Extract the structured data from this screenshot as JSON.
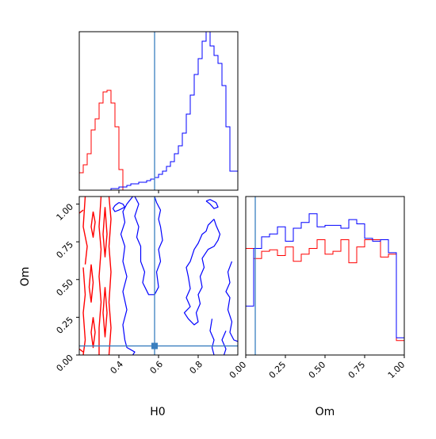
{
  "chart_data": [
    {
      "panel": "H0 marginal",
      "type": "histogram",
      "xlim": [
        0.2,
        1.0
      ],
      "truth": 0.58,
      "bin_edges": [
        0.2,
        0.22,
        0.24,
        0.26,
        0.28,
        0.3,
        0.32,
        0.34,
        0.36,
        0.38,
        0.4,
        0.42,
        0.44,
        0.46,
        0.48,
        0.5,
        0.52,
        0.54,
        0.56,
        0.58,
        0.6,
        0.62,
        0.64,
        0.66,
        0.68,
        0.7,
        0.72,
        0.74,
        0.76,
        0.78,
        0.8,
        0.82,
        0.84,
        0.86,
        0.88,
        0.9,
        0.92,
        0.94,
        0.96,
        0.98,
        1.0
      ],
      "series": [
        {
          "color": "#ff0000",
          "counts": [
            0.11,
            0.16,
            0.23,
            0.38,
            0.45,
            0.55,
            0.62,
            0.63,
            0.55,
            0.4,
            0.13,
            0,
            0,
            0,
            0,
            0,
            0,
            0,
            0,
            0,
            0,
            0,
            0,
            0,
            0,
            0,
            0,
            0,
            0,
            0,
            0,
            0,
            0,
            0,
            0,
            0,
            0,
            0,
            0,
            0
          ]
        },
        {
          "color": "#0000ff",
          "counts": [
            0,
            0,
            0,
            0,
            0,
            0,
            0,
            0,
            0.01,
            0.01,
            0.02,
            0.02,
            0.03,
            0.04,
            0.04,
            0.05,
            0.05,
            0.06,
            0.07,
            0.08,
            0.1,
            0.12,
            0.15,
            0.18,
            0.23,
            0.28,
            0.36,
            0.48,
            0.6,
            0.73,
            0.83,
            0.94,
            1.0,
            0.91,
            0.85,
            0.8,
            0.66,
            0.4,
            0.12,
            0.12
          ]
        }
      ]
    },
    {
      "panel": "Om marginal",
      "type": "histogram",
      "xlabel": "Om",
      "xlim": [
        0.0,
        1.0
      ],
      "xticks": [
        "0.00",
        "0.25",
        "0.50",
        "0.75",
        "1.00"
      ],
      "truth": 0.06,
      "bin_edges": [
        0.0,
        0.05,
        0.1,
        0.15,
        0.2,
        0.25,
        0.3,
        0.35,
        0.4,
        0.45,
        0.5,
        0.55,
        0.6,
        0.65,
        0.7,
        0.75,
        0.8,
        0.85,
        0.9,
        0.95,
        1.0
      ],
      "series": [
        {
          "color": "#ff0000",
          "counts": [
            0.74,
            0.67,
            0.72,
            0.73,
            0.69,
            0.75,
            0.65,
            0.7,
            0.74,
            0.8,
            0.7,
            0.72,
            0.8,
            0.64,
            0.75,
            0.8,
            0.8,
            0.68,
            0.7,
            0.1
          ]
        },
        {
          "color": "#0000ff",
          "counts": [
            0.34,
            0.74,
            0.82,
            0.84,
            0.89,
            0.79,
            0.88,
            0.92,
            0.98,
            0.89,
            0.9,
            0.9,
            0.88,
            0.94,
            0.91,
            0.81,
            0.79,
            0.8,
            0.71,
            0.12
          ]
        }
      ]
    },
    {
      "panel": "H0 vs Om contours",
      "type": "contour",
      "xlabel": "H0",
      "ylabel": "Om",
      "xlim": [
        0.2,
        1.0
      ],
      "ylim": [
        0.0,
        1.05
      ],
      "xticks": [
        "0.4",
        "0.6",
        "0.8"
      ],
      "yticks": [
        "0.00",
        "0.25",
        "0.50",
        "0.75",
        "1.00"
      ],
      "truth": {
        "x": 0.58,
        "y": 0.06
      },
      "series": [
        {
          "color": "#ff0000",
          "contours": [
            [
              [
                0.31,
                1.05
              ],
              [
                0.3,
                0.85
              ],
              [
                0.31,
                0.7
              ],
              [
                0.3,
                0.52
              ],
              [
                0.31,
                0.35
              ],
              [
                0.3,
                0.18
              ],
              [
                0.3,
                0.0
              ]
            ],
            [
              [
                0.35,
                1.05
              ],
              [
                0.36,
                0.9
              ],
              [
                0.35,
                0.72
              ],
              [
                0.36,
                0.55
              ],
              [
                0.35,
                0.35
              ],
              [
                0.36,
                0.18
              ],
              [
                0.35,
                0.0
              ]
            ],
            [
              [
                0.23,
                1.05
              ],
              [
                0.22,
                0.85
              ],
              [
                0.24,
                0.72
              ],
              [
                0.23,
                0.6
              ]
            ],
            [
              [
                0.22,
                0.58
              ],
              [
                0.23,
                0.4
              ],
              [
                0.22,
                0.28
              ],
              [
                0.23,
                0.1
              ],
              [
                0.22,
                0.0
              ]
            ],
            [
              [
                0.27,
                0.95
              ],
              [
                0.26,
                0.85
              ],
              [
                0.27,
                0.78
              ],
              [
                0.28,
                0.88
              ],
              [
                0.27,
                0.95
              ]
            ],
            [
              [
                0.26,
                0.6
              ],
              [
                0.25,
                0.45
              ],
              [
                0.26,
                0.35
              ],
              [
                0.27,
                0.48
              ],
              [
                0.26,
                0.6
              ]
            ],
            [
              [
                0.27,
                0.25
              ],
              [
                0.26,
                0.15
              ],
              [
                0.27,
                0.05
              ],
              [
                0.28,
                0.15
              ],
              [
                0.27,
                0.25
              ]
            ],
            [
              [
                0.33,
                0.98
              ],
              [
                0.32,
                0.8
              ],
              [
                0.33,
                0.65
              ],
              [
                0.34,
                0.8
              ],
              [
                0.33,
                0.98
              ]
            ],
            [
              [
                0.33,
                0.45
              ],
              [
                0.32,
                0.28
              ],
              [
                0.33,
                0.12
              ],
              [
                0.34,
                0.28
              ],
              [
                0.33,
                0.45
              ]
            ],
            [
              [
                0.22,
                0.96
              ],
              [
                0.2,
                0.94
              ]
            ],
            [
              [
                0.22,
                0.02
              ],
              [
                0.2,
                0.04
              ]
            ]
          ]
        },
        {
          "color": "#0000ff",
          "contours": [
            [
              [
                0.4,
                1.01
              ],
              [
                0.38,
                0.99
              ],
              [
                0.37,
                0.97
              ],
              [
                0.38,
                0.95
              ],
              [
                0.4,
                0.96
              ],
              [
                0.43,
                0.98
              ],
              [
                0.42,
                1.0
              ],
              [
                0.4,
                1.01
              ]
            ],
            [
              [
                0.47,
                1.05
              ],
              [
                0.44,
                1.0
              ],
              [
                0.42,
                0.95
              ],
              [
                0.43,
                0.88
              ],
              [
                0.41,
                0.8
              ],
              [
                0.43,
                0.72
              ],
              [
                0.42,
                0.62
              ],
              [
                0.44,
                0.52
              ],
              [
                0.42,
                0.42
              ],
              [
                0.44,
                0.3
              ],
              [
                0.42,
                0.2
              ],
              [
                0.43,
                0.1
              ],
              [
                0.44,
                0.05
              ],
              [
                0.48,
                0.02
              ],
              [
                0.47,
                0.0
              ]
            ],
            [
              [
                0.48,
                1.05
              ],
              [
                0.5,
                1.0
              ],
              [
                0.48,
                0.92
              ],
              [
                0.5,
                0.85
              ],
              [
                0.49,
                0.78
              ],
              [
                0.51,
                0.72
              ],
              [
                0.51,
                0.62
              ],
              [
                0.53,
                0.55
              ],
              [
                0.52,
                0.48
              ],
              [
                0.55,
                0.4
              ],
              [
                0.58,
                0.4
              ],
              [
                0.6,
                0.45
              ],
              [
                0.59,
                0.55
              ],
              [
                0.61,
                0.62
              ],
              [
                0.6,
                0.7
              ],
              [
                0.62,
                0.76
              ],
              [
                0.61,
                0.85
              ],
              [
                0.6,
                0.9
              ],
              [
                0.61,
                0.96
              ],
              [
                0.59,
                1.01
              ],
              [
                0.58,
                1.05
              ]
            ],
            [
              [
                0.84,
                1.02
              ],
              [
                0.86,
                1.0
              ],
              [
                0.88,
                0.97
              ],
              [
                0.9,
                0.98
              ],
              [
                0.89,
                1.01
              ],
              [
                0.86,
                1.03
              ],
              [
                0.84,
                1.02
              ]
            ],
            [
              [
                0.88,
                0.9
              ],
              [
                0.85,
                0.86
              ],
              [
                0.84,
                0.82
              ],
              [
                0.82,
                0.8
              ],
              [
                0.8,
                0.74
              ],
              [
                0.78,
                0.7
              ],
              [
                0.76,
                0.62
              ],
              [
                0.74,
                0.58
              ],
              [
                0.75,
                0.52
              ],
              [
                0.76,
                0.44
              ],
              [
                0.74,
                0.38
              ],
              [
                0.76,
                0.32
              ],
              [
                0.73,
                0.28
              ],
              [
                0.75,
                0.24
              ],
              [
                0.78,
                0.2
              ],
              [
                0.8,
                0.22
              ],
              [
                0.79,
                0.28
              ],
              [
                0.81,
                0.34
              ],
              [
                0.8,
                0.4
              ],
              [
                0.82,
                0.45
              ],
              [
                0.81,
                0.52
              ],
              [
                0.83,
                0.58
              ],
              [
                0.82,
                0.64
              ],
              [
                0.85,
                0.7
              ],
              [
                0.88,
                0.72
              ],
              [
                0.9,
                0.76
              ],
              [
                0.91,
                0.8
              ],
              [
                0.89,
                0.86
              ],
              [
                0.88,
                0.9
              ]
            ],
            [
              [
                0.97,
                0.62
              ],
              [
                0.95,
                0.55
              ],
              [
                0.96,
                0.48
              ],
              [
                0.94,
                0.42
              ],
              [
                0.96,
                0.38
              ],
              [
                0.95,
                0.3
              ],
              [
                0.97,
                0.22
              ],
              [
                0.96,
                0.15
              ],
              [
                0.98,
                0.1
              ],
              [
                1.0,
                0.09
              ]
            ],
            [
              [
                0.88,
                0.0
              ],
              [
                0.87,
                0.05
              ],
              [
                0.88,
                0.1
              ],
              [
                0.86,
                0.16
              ],
              [
                0.87,
                0.24
              ]
            ],
            [
              [
                0.93,
                0.0
              ],
              [
                0.94,
                0.04
              ],
              [
                0.92,
                0.1
              ],
              [
                0.94,
                0.16
              ]
            ]
          ]
        }
      ]
    }
  ]
}
